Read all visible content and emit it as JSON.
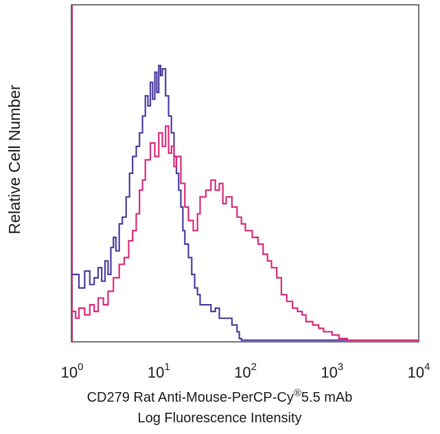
{
  "chart_data": {
    "type": "line",
    "xscale": "log",
    "xlim": [
      1,
      10000
    ],
    "ylim": [
      0,
      100
    ],
    "grid": false,
    "legend": "none",
    "ylabel": "Relative Cell Number",
    "xlabel_line1": "CD279 Rat Anti-Mouse-PerCP-Cy",
    "xlabel_reg": "®",
    "xlabel_line1_end": "5.5 mAb",
    "xlabel_line2": "Log Fluorescence Intensity",
    "xticks": [
      {
        "base": "10",
        "exp": "0",
        "value": 1
      },
      {
        "base": "10",
        "exp": "1",
        "value": 10
      },
      {
        "base": "10",
        "exp": "2",
        "value": 100
      },
      {
        "base": "10",
        "exp": "3",
        "value": 1000
      },
      {
        "base": "10",
        "exp": "4",
        "value": 10000
      }
    ],
    "colors": {
      "axis": "#444444",
      "left_axis": "#b0306a"
    },
    "series": [
      {
        "color": "#4a3a9e",
        "x": [
          1,
          1.2,
          1.4,
          1.6,
          1.8,
          2,
          2.2,
          2.4,
          2.6,
          2.8,
          3,
          3.2,
          3.5,
          3.8,
          4.2,
          4.6,
          5,
          5.5,
          6,
          6.5,
          7,
          7.5,
          8,
          8.5,
          9,
          9.5,
          10,
          10.5,
          11,
          12,
          13,
          14,
          15,
          16,
          17,
          18,
          19,
          20,
          22,
          24,
          26,
          28,
          30,
          35,
          40,
          45,
          50,
          60,
          70,
          80,
          85,
          90,
          100,
          200,
          500,
          1000,
          3000,
          10000
        ],
        "y": [
          20,
          16,
          21,
          17,
          19,
          22,
          18,
          24,
          20,
          28,
          31,
          27,
          35,
          37,
          43,
          50,
          55,
          58,
          62,
          67,
          73,
          70,
          77,
          72,
          80,
          74,
          82,
          79,
          81,
          73,
          67,
          62,
          55,
          50,
          45,
          40,
          33,
          29,
          25,
          20,
          16,
          14,
          11,
          11,
          9,
          10,
          7,
          7,
          5,
          3,
          1,
          0.5,
          0.5,
          0.5,
          0.5,
          0.5,
          0.5,
          0.5
        ]
      },
      {
        "color": "#d8287a",
        "x": [
          1,
          1.1,
          1.2,
          1.4,
          1.6,
          1.8,
          2,
          2.3,
          2.6,
          3,
          3.5,
          4,
          4.5,
          5,
          5.5,
          6,
          6.5,
          7,
          8,
          9,
          10,
          11,
          12,
          13,
          14,
          15,
          16,
          18,
          20,
          22,
          25,
          28,
          30,
          35,
          40,
          45,
          50,
          55,
          60,
          70,
          80,
          90,
          100,
          120,
          140,
          160,
          180,
          200,
          230,
          260,
          300,
          350,
          400,
          450,
          500,
          600,
          700,
          800,
          1000,
          1200,
          1500,
          2000,
          3000,
          10000
        ],
        "y": [
          9,
          7,
          10,
          8,
          11,
          9,
          13,
          11,
          15,
          19,
          23,
          25,
          30,
          33,
          38,
          45,
          48,
          54,
          59,
          55,
          62,
          58,
          64,
          56,
          58,
          52,
          55,
          47,
          40,
          36,
          33,
          38,
          43,
          45,
          48,
          45,
          47,
          41,
          43,
          40,
          37,
          35,
          33,
          31,
          29,
          26,
          24,
          22,
          19,
          14,
          12,
          10,
          9,
          8,
          6,
          5,
          4,
          3,
          2,
          1,
          0.5,
          0.5,
          0.5,
          0.5
        ]
      }
    ]
  }
}
